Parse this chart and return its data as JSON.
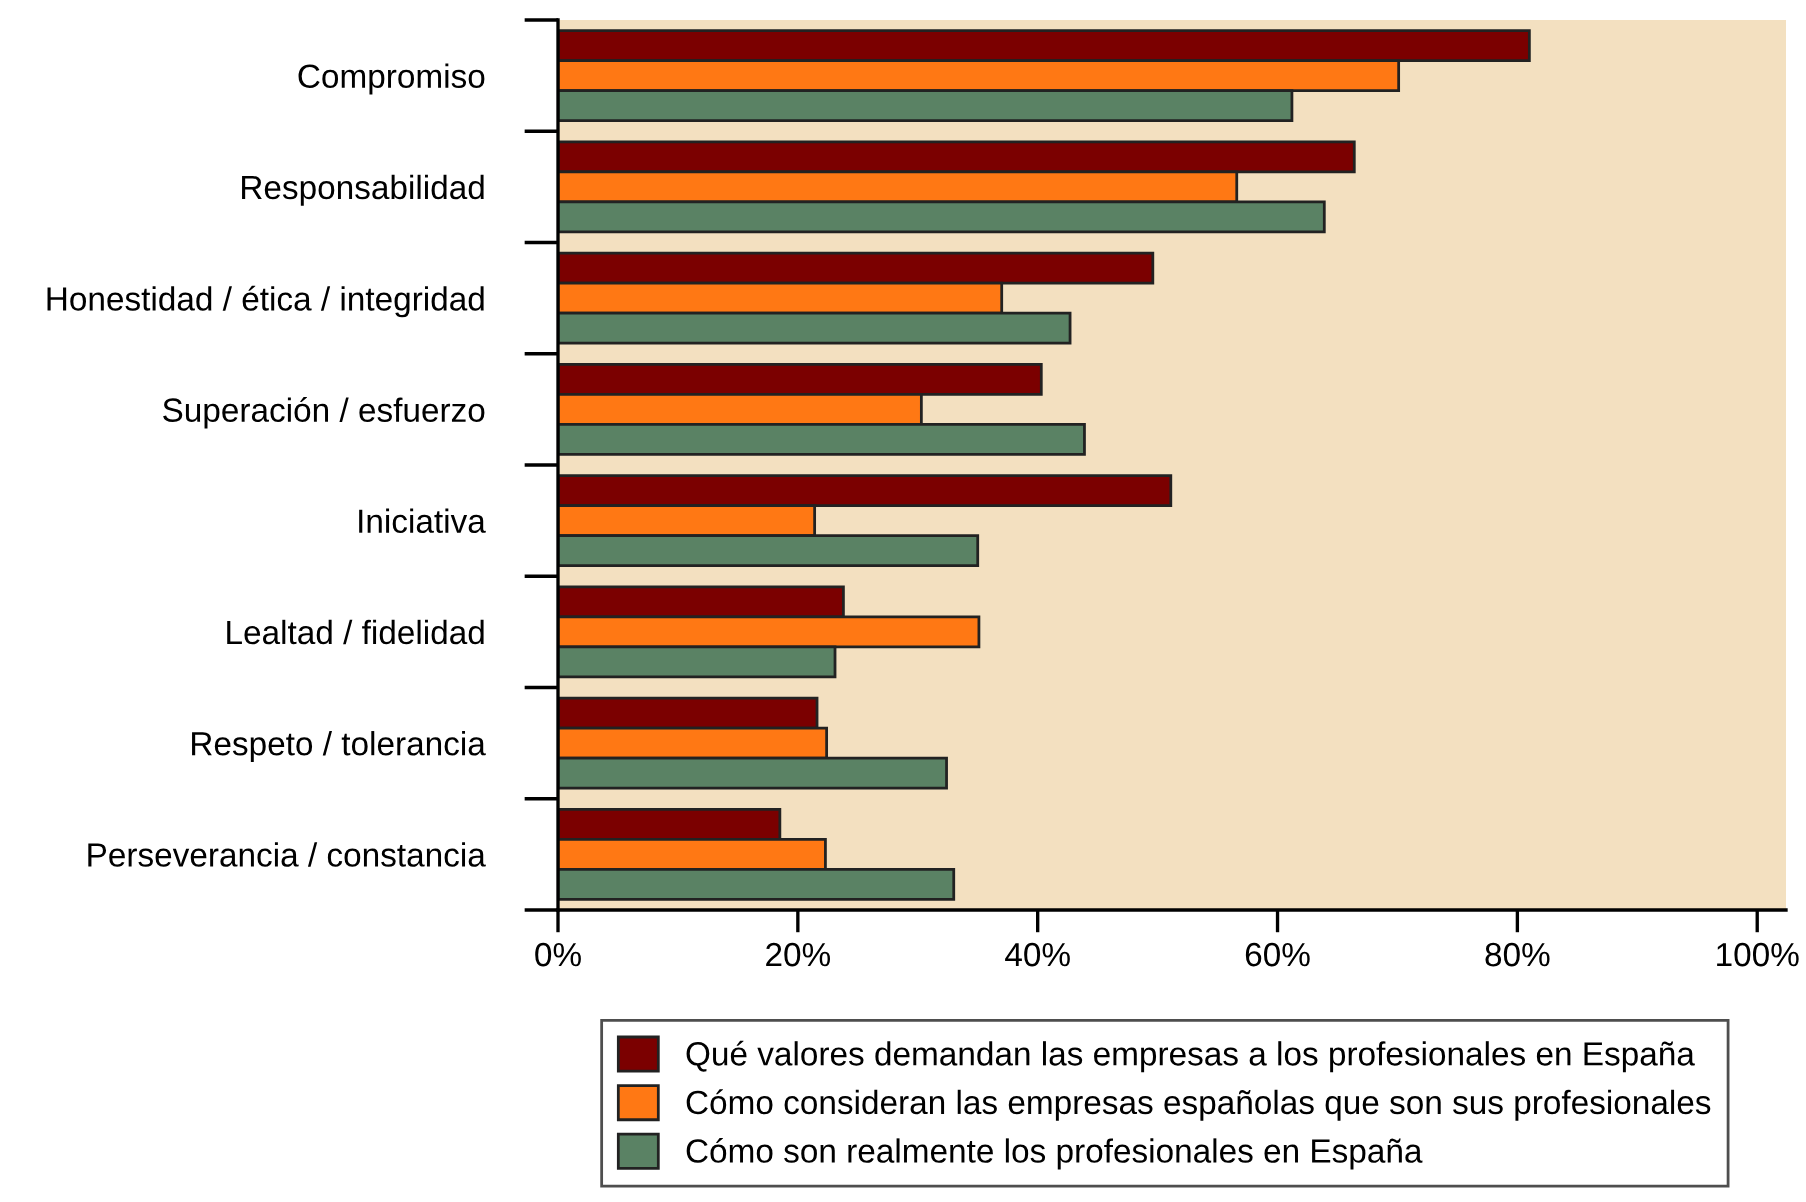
{
  "chart_data": {
    "type": "bar",
    "orientation": "horizontal",
    "categories": [
      "Compromiso",
      "Responsabilidad",
      "Honestidad / ética / integridad",
      "Superación / esfuerzo",
      "Iniciativa",
      "Lealtad / fidelidad",
      "Respeto / tolerancia",
      "Perseverancia / constancia"
    ],
    "series": [
      {
        "name": "Qué valores demandan las empresas a los profesionales en España",
        "color": "#7b0000",
        "values": [
          81.0,
          66.4,
          49.6,
          40.3,
          51.1,
          23.8,
          21.6,
          18.5
        ]
      },
      {
        "name": "Cómo consideran las empresas españolas que son sus profesionales",
        "color": "#ff7814",
        "values": [
          70.1,
          56.6,
          37.0,
          30.3,
          21.4,
          35.1,
          22.4,
          22.3
        ]
      },
      {
        "name": "Cómo son realmente los profesionales en España",
        "color": "#5a8264",
        "values": [
          61.2,
          63.9,
          42.7,
          43.9,
          35.0,
          23.1,
          32.4,
          33.0
        ]
      }
    ],
    "xlim": [
      0,
      102.4
    ],
    "xticks": [
      {
        "value": 0,
        "label": "0%"
      },
      {
        "value": 20,
        "label": "20%"
      },
      {
        "value": 40,
        "label": "40%"
      },
      {
        "value": 60,
        "label": "60%"
      },
      {
        "value": 80,
        "label": "80%"
      },
      {
        "value": 100,
        "label": "100%"
      }
    ],
    "grid": false,
    "legend": "bottom"
  }
}
